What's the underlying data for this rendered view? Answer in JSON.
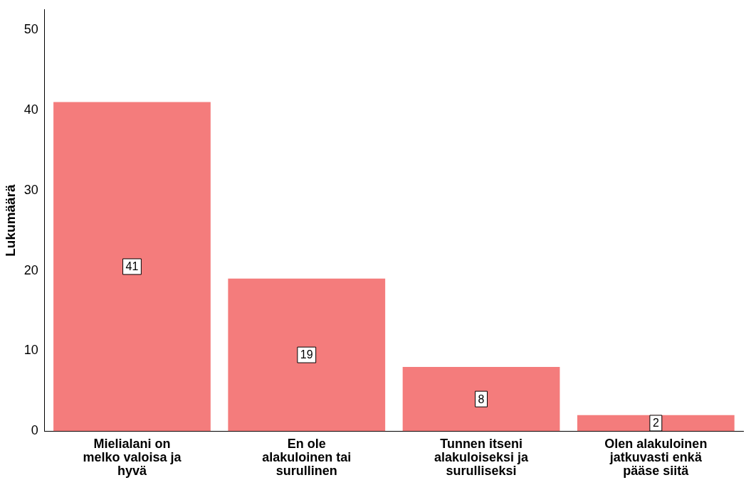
{
  "chart_data": {
    "type": "bar",
    "ylabel": "Lukumäärä",
    "categories": [
      "Mielialani on melko valoisa ja hyvä",
      "En ole alakuloinen tai surullinen",
      "Tunnen itseni alakuloiseksi ja surulliseksi",
      "Olen alakuloinen jatkuvasti enkä pääse siitä"
    ],
    "values": [
      41,
      19,
      8,
      2
    ],
    "color": "#f47c7c",
    "ylim": [
      0,
      52.5
    ],
    "yticks": [
      0,
      10,
      20,
      30,
      40,
      50
    ],
    "grid": false,
    "legend": false,
    "data_labels": true
  }
}
